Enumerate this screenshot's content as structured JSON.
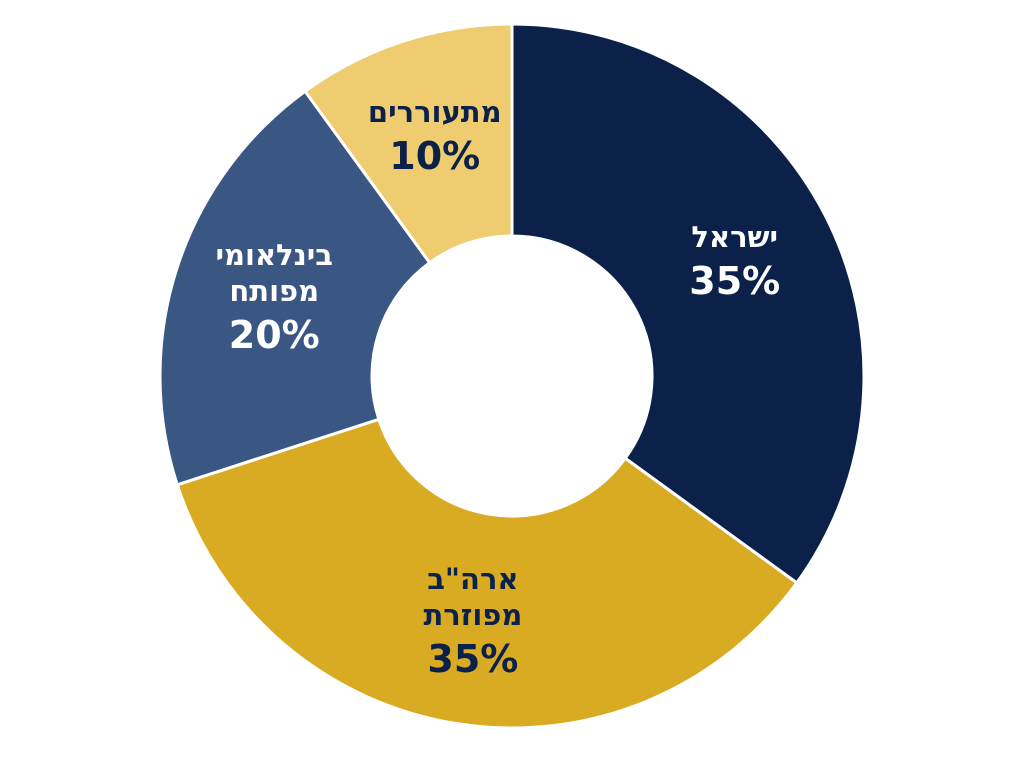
{
  "chart_data": {
    "type": "donut",
    "categories": [
      "ישראל",
      "ארה\"ב מפוזרת",
      "בינלאומי מפותח",
      "מתעוררים"
    ],
    "values": [
      35,
      35,
      20,
      10
    ],
    "value_labels": [
      "35%",
      "35%",
      "20%",
      "10%"
    ],
    "colors": [
      "#0b2149",
      "#d9ab22",
      "#3a5783",
      "#efcc6f"
    ]
  }
}
